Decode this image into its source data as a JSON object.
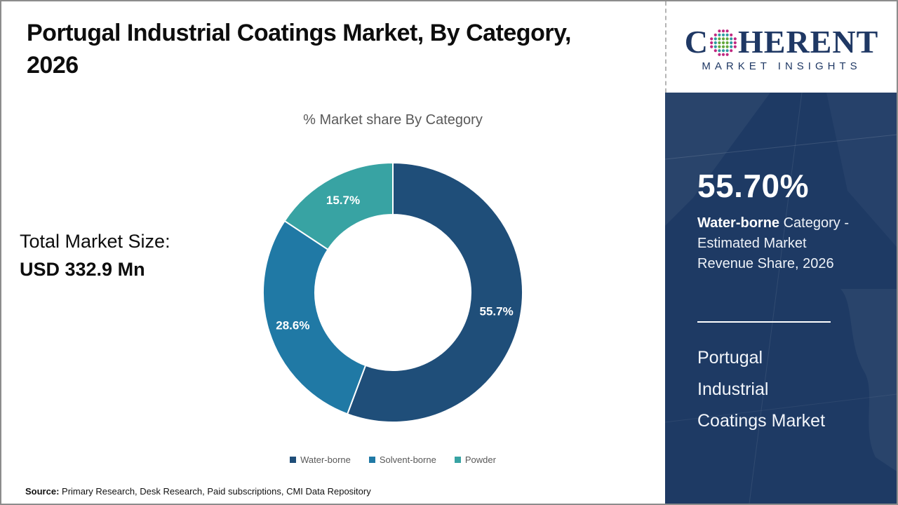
{
  "header": {
    "title_line1": "Portugal Industrial Coatings Market, By Category,",
    "title_line2": "2026"
  },
  "main": {
    "chart_subtitle": "% Market share By Category",
    "total_market": {
      "label": "Total Market Size:",
      "value": "USD 332.9 Mn"
    },
    "source_label": "Source:",
    "source_text": " Primary Research, Desk Research, Paid subscriptions, CMI Data Repository"
  },
  "chart_data": {
    "type": "pie",
    "subtype": "donut",
    "title": "% Market share By Category",
    "categories": [
      "Water-borne",
      "Solvent-borne",
      "Powder"
    ],
    "values": [
      55.7,
      28.6,
      15.7
    ],
    "data_labels": [
      "55.7%",
      "28.6%",
      "15.7%"
    ],
    "colors": [
      "#1f4e79",
      "#2079a5",
      "#38a3a3"
    ],
    "start_angle_deg": 0,
    "direction": "clockwise",
    "hole_ratio": 0.6,
    "legend_position": "bottom"
  },
  "sidebar": {
    "logo": {
      "brand_prefix": "C",
      "brand_suffix": "HERENT",
      "tagline": "MARKET INSIGHTS",
      "brand_color": "#1f3864"
    },
    "stat_value": "55.70%",
    "stat_desc_bold": "Water-borne",
    "stat_desc_rest": " Category - Estimated Market Revenue Share, 2026",
    "panel_title": [
      "Portugal",
      "Industrial",
      "Coatings Market"
    ],
    "bg_color": "#1e3a64"
  }
}
